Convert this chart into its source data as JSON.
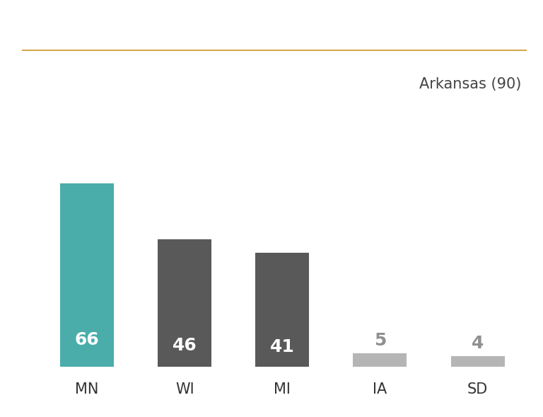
{
  "categories": [
    "MN",
    "WI",
    "MI",
    "IA",
    "SD"
  ],
  "values": [
    66,
    46,
    41,
    5,
    4
  ],
  "bar_colors": [
    "#4aadaa",
    "#595959",
    "#595959",
    "#b5b5b5",
    "#b5b5b5"
  ],
  "label_colors": [
    "#ffffff",
    "#ffffff",
    "#ffffff",
    "#909090",
    "#909090"
  ],
  "annotation_text": "Arkansas (90)",
  "annotation_color": "#444444",
  "top_line_color": "#d4a84b",
  "background_color": "#ffffff",
  "ylim": [
    0,
    90
  ],
  "bar_width": 0.55,
  "label_fontsize": 18,
  "tick_fontsize": 15,
  "annotation_fontsize": 15,
  "small_label_threshold": 10
}
